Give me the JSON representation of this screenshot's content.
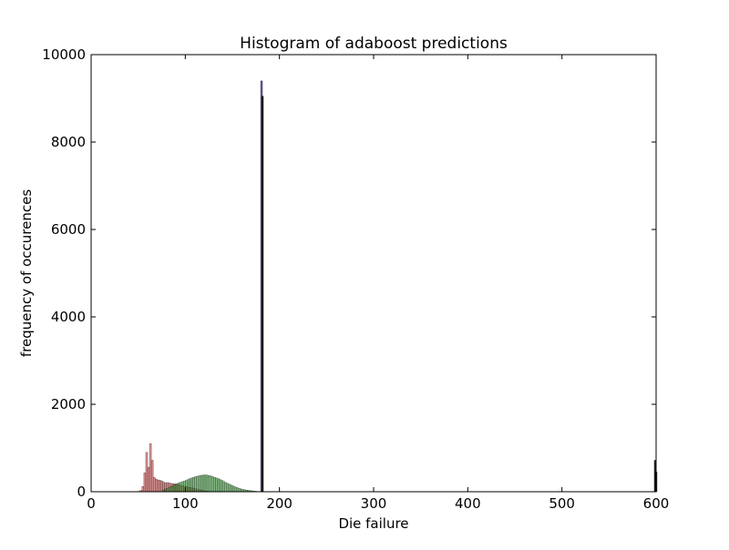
{
  "chart_data": {
    "type": "bar",
    "title": "Histogram of adaboost predictions",
    "xlabel": "Die failure",
    "ylabel": "frequency of occurences",
    "xlim": [
      0,
      600
    ],
    "ylim": [
      0,
      10000
    ],
    "xticks": [
      0,
      100,
      200,
      300,
      400,
      500,
      600
    ],
    "yticks": [
      0,
      2000,
      4000,
      6000,
      8000,
      10000
    ],
    "grid": false,
    "bin_width": 2,
    "series": [
      {
        "color": "#c84b4b",
        "opacity": 0.6,
        "bins": [
          [
            50,
            10
          ],
          [
            52,
            30
          ],
          [
            54,
            120
          ],
          [
            56,
            430
          ],
          [
            58,
            900
          ],
          [
            60,
            560
          ],
          [
            62,
            1100
          ],
          [
            64,
            720
          ],
          [
            66,
            330
          ],
          [
            68,
            290
          ],
          [
            70,
            270
          ],
          [
            72,
            260
          ],
          [
            74,
            250
          ],
          [
            76,
            220
          ],
          [
            78,
            200
          ],
          [
            80,
            210
          ],
          [
            82,
            200
          ],
          [
            84,
            190
          ],
          [
            86,
            185
          ],
          [
            88,
            180
          ],
          [
            90,
            170
          ],
          [
            92,
            165
          ],
          [
            94,
            150
          ],
          [
            96,
            140
          ],
          [
            98,
            130
          ],
          [
            100,
            120
          ],
          [
            102,
            110
          ],
          [
            104,
            100
          ],
          [
            106,
            90
          ],
          [
            108,
            80
          ],
          [
            110,
            70
          ],
          [
            112,
            60
          ],
          [
            114,
            50
          ],
          [
            116,
            40
          ],
          [
            118,
            30
          ],
          [
            120,
            20
          ],
          [
            122,
            15
          ],
          [
            124,
            10
          ]
        ]
      },
      {
        "color": "#3c9a3c",
        "opacity": 0.6,
        "bins": [
          [
            76,
            40
          ],
          [
            78,
            60
          ],
          [
            80,
            80
          ],
          [
            82,
            100
          ],
          [
            84,
            120
          ],
          [
            86,
            140
          ],
          [
            88,
            160
          ],
          [
            90,
            180
          ],
          [
            92,
            200
          ],
          [
            94,
            215
          ],
          [
            96,
            230
          ],
          [
            98,
            245
          ],
          [
            100,
            260
          ],
          [
            102,
            280
          ],
          [
            104,
            300
          ],
          [
            106,
            315
          ],
          [
            108,
            330
          ],
          [
            110,
            345
          ],
          [
            112,
            355
          ],
          [
            114,
            365
          ],
          [
            116,
            375
          ],
          [
            118,
            380
          ],
          [
            120,
            385
          ],
          [
            122,
            380
          ],
          [
            124,
            370
          ],
          [
            126,
            360
          ],
          [
            128,
            345
          ],
          [
            130,
            330
          ],
          [
            132,
            315
          ],
          [
            134,
            300
          ],
          [
            136,
            280
          ],
          [
            138,
            260
          ],
          [
            140,
            235
          ],
          [
            142,
            210
          ],
          [
            144,
            190
          ],
          [
            146,
            170
          ],
          [
            148,
            150
          ],
          [
            150,
            130
          ],
          [
            152,
            110
          ],
          [
            154,
            95
          ],
          [
            156,
            80
          ],
          [
            158,
            65
          ],
          [
            160,
            55
          ],
          [
            162,
            45
          ],
          [
            164,
            38
          ],
          [
            166,
            32
          ],
          [
            168,
            26
          ],
          [
            170,
            20
          ],
          [
            172,
            15
          ],
          [
            174,
            10
          ],
          [
            176,
            6
          ],
          [
            178,
            3
          ]
        ]
      },
      {
        "color": "#4a4aa8",
        "opacity": 0.9,
        "bins": [
          [
            180,
            9400
          ]
        ]
      },
      {
        "color": "#111111",
        "opacity": 0.9,
        "bins": [
          [
            181,
            9050
          ],
          [
            598,
            720
          ],
          [
            599,
            450
          ]
        ]
      }
    ]
  }
}
